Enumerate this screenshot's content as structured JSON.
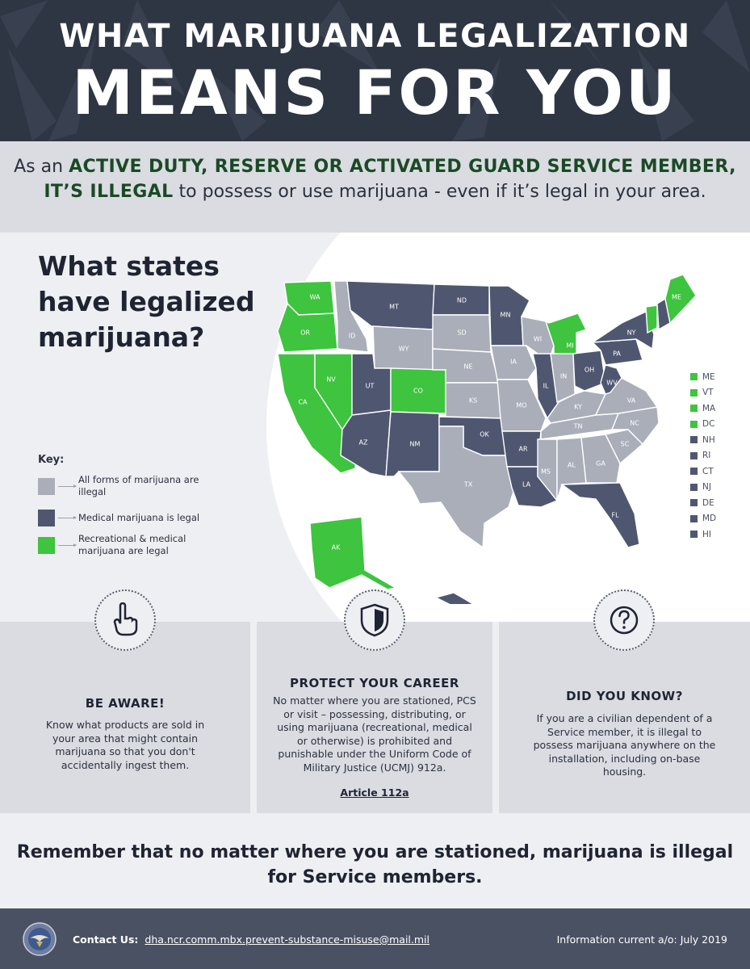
{
  "header": {
    "line1": "WHAT MARIJUANA LEGALIZATION",
    "line2": "MEANS FOR YOU"
  },
  "subhead": {
    "part1": "As an ",
    "bold1": "ACTIVE DUTY, RESERVE OR ACTIVATED GUARD SERVICE MEMBER, IT’S ILLEGAL",
    "part2": " to possess or use marijuana - even if it’s legal in your area."
  },
  "map": {
    "title": "What states have legalized marijuana?",
    "key_title": "Key:",
    "colors": {
      "illegal": "#a9aeb9",
      "medical": "#4f5770",
      "recreational": "#3ec43e"
    },
    "key": [
      {
        "label": "All forms of marijuana are illegal",
        "status": "illegal"
      },
      {
        "label": "Medical marijuana is legal",
        "status": "medical"
      },
      {
        "label": "Recreational & medical marijuana are legal",
        "status": "recreational"
      }
    ],
    "legend": [
      {
        "abbr": "ME",
        "status": "recreational"
      },
      {
        "abbr": "VT",
        "status": "recreational"
      },
      {
        "abbr": "MA",
        "status": "recreational"
      },
      {
        "abbr": "DC",
        "status": "recreational"
      },
      {
        "abbr": "NH",
        "status": "medical"
      },
      {
        "abbr": "RI",
        "status": "medical"
      },
      {
        "abbr": "CT",
        "status": "medical"
      },
      {
        "abbr": "NJ",
        "status": "medical"
      },
      {
        "abbr": "DE",
        "status": "medical"
      },
      {
        "abbr": "MD",
        "status": "medical"
      },
      {
        "abbr": "HI",
        "status": "medical"
      }
    ],
    "states": [
      {
        "abbr": "WA",
        "status": "recreational"
      },
      {
        "abbr": "OR",
        "status": "recreational"
      },
      {
        "abbr": "CA",
        "status": "recreational"
      },
      {
        "abbr": "NV",
        "status": "recreational"
      },
      {
        "abbr": "ID",
        "status": "illegal"
      },
      {
        "abbr": "MT",
        "status": "medical"
      },
      {
        "abbr": "WY",
        "status": "illegal"
      },
      {
        "abbr": "UT",
        "status": "medical"
      },
      {
        "abbr": "AZ",
        "status": "medical"
      },
      {
        "abbr": "CO",
        "status": "recreational"
      },
      {
        "abbr": "NM",
        "status": "medical"
      },
      {
        "abbr": "ND",
        "status": "medical"
      },
      {
        "abbr": "SD",
        "status": "illegal"
      },
      {
        "abbr": "NE",
        "status": "illegal"
      },
      {
        "abbr": "KS",
        "status": "illegal"
      },
      {
        "abbr": "OK",
        "status": "medical"
      },
      {
        "abbr": "TX",
        "status": "illegal"
      },
      {
        "abbr": "MN",
        "status": "medical"
      },
      {
        "abbr": "IA",
        "status": "illegal"
      },
      {
        "abbr": "MO",
        "status": "illegal"
      },
      {
        "abbr": "AR",
        "status": "medical"
      },
      {
        "abbr": "LA",
        "status": "medical"
      },
      {
        "abbr": "WI",
        "status": "illegal"
      },
      {
        "abbr": "IL",
        "status": "medical"
      },
      {
        "abbr": "MI",
        "status": "recreational"
      },
      {
        "abbr": "IN",
        "status": "illegal"
      },
      {
        "abbr": "OH",
        "status": "medical"
      },
      {
        "abbr": "KY",
        "status": "illegal"
      },
      {
        "abbr": "TN",
        "status": "illegal"
      },
      {
        "abbr": "MS",
        "status": "illegal"
      },
      {
        "abbr": "AL",
        "status": "illegal"
      },
      {
        "abbr": "GA",
        "status": "illegal"
      },
      {
        "abbr": "FL",
        "status": "medical"
      },
      {
        "abbr": "SC",
        "status": "illegal"
      },
      {
        "abbr": "NC",
        "status": "illegal"
      },
      {
        "abbr": "VA",
        "status": "illegal"
      },
      {
        "abbr": "WV",
        "status": "medical"
      },
      {
        "abbr": "PA",
        "status": "medical"
      },
      {
        "abbr": "NY",
        "status": "medical"
      },
      {
        "abbr": "VT",
        "status": "recreational"
      },
      {
        "abbr": "NH",
        "status": "medical"
      },
      {
        "abbr": "ME",
        "status": "recreational"
      },
      {
        "abbr": "AK",
        "status": "recreational"
      },
      {
        "abbr": "HI",
        "status": "medical"
      }
    ]
  },
  "columns": [
    {
      "icon": "pointing-hand-icon",
      "title": "BE AWARE!",
      "text": "Know what products are sold in your area that might contain marijuana so that you don't accidentally ingest them."
    },
    {
      "icon": "shield-icon",
      "title": "PROTECT YOUR CAREER",
      "text": "No matter where you are stationed, PCS or visit – possessing, distributing, or using marijuana (recreational, medical or otherwise) is prohibited and punishable under the Uniform Code of Military Justice (UCMJ) 912a.",
      "link": "Article 112a"
    },
    {
      "icon": "question-mark-icon",
      "title": "DID YOU KNOW?",
      "text": "If you are a civilian dependent of a Service member, it is illegal to possess marijuana anywhere on the installation, including on-base housing."
    }
  ],
  "remember": "Remember that no matter where you are stationed, marijuana is illegal for Service members.",
  "footer": {
    "contact_label": "Contact Us:",
    "email": "dha.ncr.comm.mbx.prevent-substance-misuse@mail.mil",
    "info_current": "Information current a/o: July 2019"
  }
}
